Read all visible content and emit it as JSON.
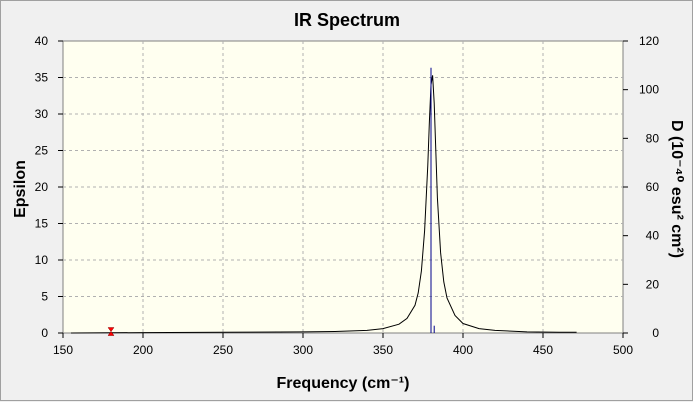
{
  "chart_data": {
    "type": "line",
    "title": "IR Spectrum",
    "xlabel": "Frequency (cm⁻¹)",
    "ylabel": "Epsilon",
    "y2label": "D (10⁻⁴⁰ esu² cm²)",
    "xlim": [
      150,
      500
    ],
    "ylim": [
      0,
      40
    ],
    "y2lim": [
      0,
      120
    ],
    "x_ticks": [
      150,
      200,
      250,
      300,
      350,
      400,
      450,
      500
    ],
    "y_ticks": [
      0,
      5,
      10,
      15,
      20,
      25,
      30,
      35,
      40
    ],
    "y2_ticks": [
      0,
      20,
      40,
      60,
      80,
      100,
      120
    ],
    "grid": true,
    "colors": {
      "plot_background": "#fffff0",
      "grid": "#b0b0b0",
      "curve": "#000000",
      "stick": "#00008b",
      "marker": "#ff0000"
    },
    "series": [
      {
        "style": "line",
        "x": [
          155,
          200,
          250,
          300,
          320,
          340,
          350,
          360,
          365,
          370,
          372,
          374,
          376,
          378,
          379,
          380,
          381,
          382,
          383,
          384,
          386,
          388,
          390,
          395,
          400,
          410,
          420,
          440,
          460,
          471
        ],
        "y": [
          0.0,
          0.05,
          0.1,
          0.15,
          0.2,
          0.35,
          0.6,
          1.2,
          2.0,
          3.8,
          5.5,
          8.5,
          14.0,
          23.0,
          29.0,
          34.0,
          35.3,
          31.5,
          25.0,
          18.5,
          11.0,
          7.0,
          4.8,
          2.4,
          1.3,
          0.6,
          0.35,
          0.15,
          0.1,
          0.1
        ]
      },
      {
        "style": "stick",
        "x": [
          380,
          382
        ],
        "y2": [
          109,
          3
        ]
      }
    ],
    "markers": [
      {
        "x": 180,
        "y": 0.2
      }
    ]
  }
}
